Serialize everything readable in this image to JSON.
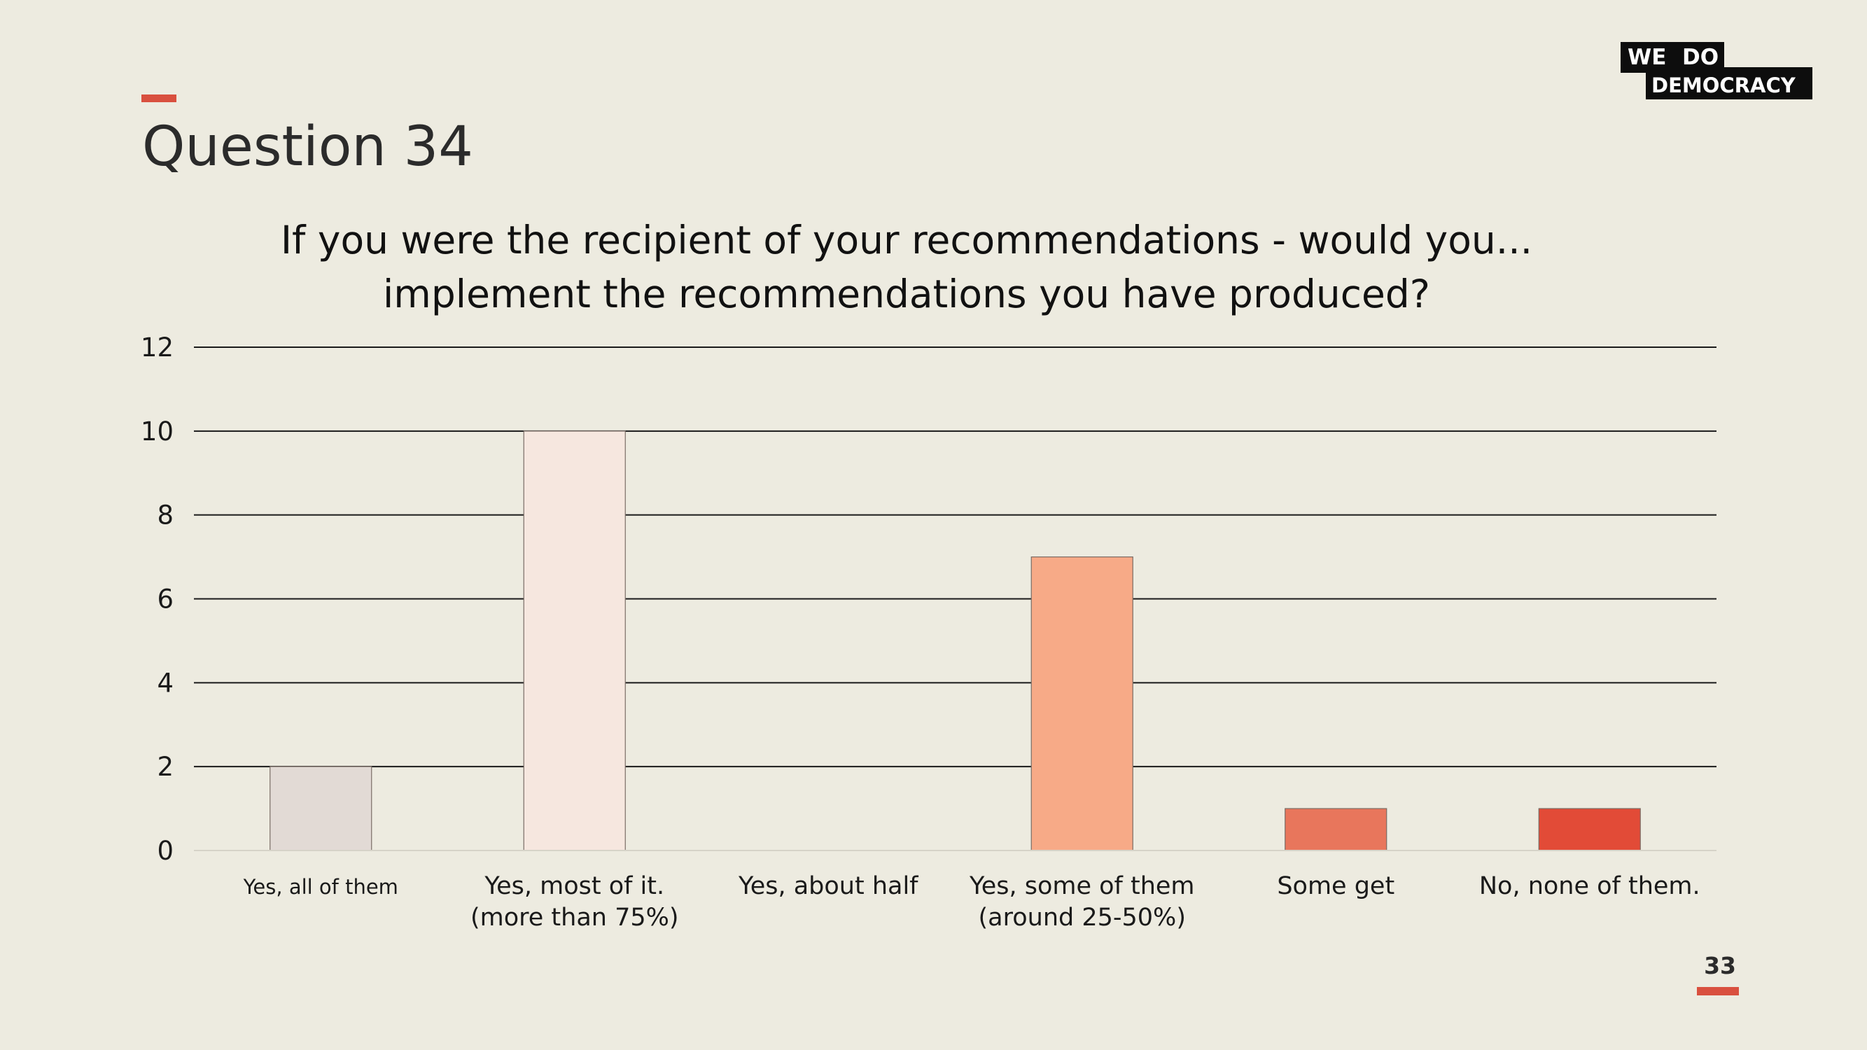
{
  "slide": {
    "title": "Question 34",
    "page_number": "33"
  },
  "logo": {
    "line1_word1": "WE",
    "line1_word2": "DO",
    "line2": "DEMOCRACY"
  },
  "colors": {
    "background": "#edebe0",
    "accent": "#d9503f"
  },
  "chart_data": {
    "type": "bar",
    "title_lines": [
      "If you were the recipient of your recommendations - would you...",
      "implement the recommendations you have produced?"
    ],
    "categories": [
      [
        "Yes, all of them"
      ],
      [
        "Yes, most of it.",
        "(more than 75%)"
      ],
      [
        "Yes, about half"
      ],
      [
        "Yes, some of them",
        "(around 25-50%)"
      ],
      [
        "Some get"
      ],
      [
        "No, none of them."
      ]
    ],
    "values": [
      2,
      10,
      0,
      7,
      1,
      1
    ],
    "bar_colors": [
      "#e2dad5",
      "#f6e7df",
      "#f4c4ad",
      "#f7aa87",
      "#e8765c",
      "#e24b37"
    ],
    "yticks": [
      0,
      2,
      4,
      6,
      8,
      10,
      12
    ],
    "ylim": [
      0,
      12
    ],
    "grid": true,
    "legend": "none"
  }
}
